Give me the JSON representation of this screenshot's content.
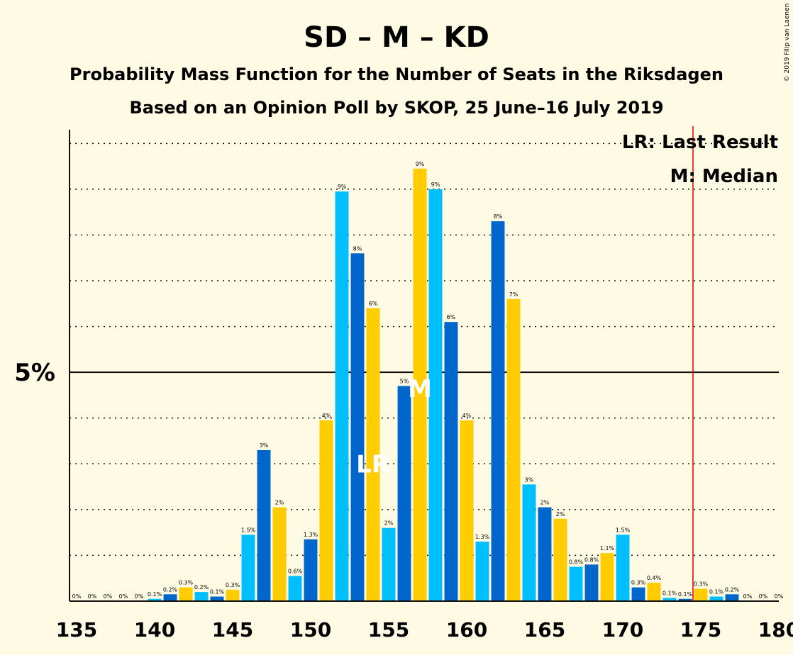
{
  "chart_data": {
    "type": "bar",
    "title": "SD – M – KD",
    "subtitle": "Probability Mass Function for the Number of Seats in the Riksdagen",
    "subtitle2": "Based on an Opinion Poll by SKOP, 25 June–16 July 2019",
    "copyright": "© 2019 Filip van Laenen",
    "legend": [
      "LR: Last Result",
      "M: Median"
    ],
    "y_tick_label": "5%",
    "y_tick_value": 5,
    "ylim": [
      0,
      10.3
    ],
    "grid": true,
    "x_ticks": [
      135,
      140,
      145,
      150,
      155,
      160,
      165,
      170,
      175,
      180
    ],
    "majority_line": 175,
    "last_result": 154,
    "median": 157,
    "markers": {
      "last_result": "LR",
      "median": "M"
    },
    "colors": [
      "#0066CC",
      "#FFCC00",
      "#00BFFF"
    ],
    "majority_color": "#E00000",
    "x": [
      135,
      136,
      137,
      138,
      139,
      140,
      141,
      142,
      143,
      144,
      145,
      146,
      147,
      148,
      149,
      150,
      151,
      152,
      153,
      154,
      155,
      156,
      157,
      158,
      159,
      160,
      161,
      162,
      163,
      164,
      165,
      166,
      167,
      168,
      169,
      170,
      171,
      172,
      173,
      174,
      175,
      176,
      177,
      178,
      179,
      180
    ],
    "values": [
      0,
      0,
      0,
      0,
      0,
      0.05,
      0.15,
      0.3,
      0.2,
      0.1,
      0.25,
      1.45,
      3.3,
      2.05,
      0.55,
      1.35,
      3.95,
      8.95,
      7.6,
      6.4,
      1.6,
      4.7,
      9.45,
      9.0,
      6.1,
      3.95,
      1.3,
      8.3,
      6.6,
      2.55,
      2.05,
      1.8,
      0.75,
      0.8,
      1.05,
      1.45,
      0.3,
      0.4,
      0.07,
      0.05,
      0.27,
      0.1,
      0.15,
      0,
      0,
      0
    ],
    "labels": [
      "0%",
      "0%",
      "0%",
      "0%",
      "0%",
      "0.1%",
      "0.2%",
      "0.3%",
      "0.2%",
      "0.1%",
      "0.3%",
      "1.5%",
      "3%",
      "2%",
      "0.6%",
      "1.3%",
      "4%",
      "9%",
      "8%",
      "6%",
      "2%",
      "5%",
      "9%",
      "9%",
      "6%",
      "4%",
      "1.3%",
      "8%",
      "7%",
      "3%",
      "2%",
      "2%",
      "0.8%",
      "0.8%",
      "1.1%",
      "1.5%",
      "0.3%",
      "0.4%",
      "0.1%",
      "0.1%",
      "0.3%",
      "0.1%",
      "0.2%",
      "0%",
      "0%",
      "0%"
    ]
  }
}
